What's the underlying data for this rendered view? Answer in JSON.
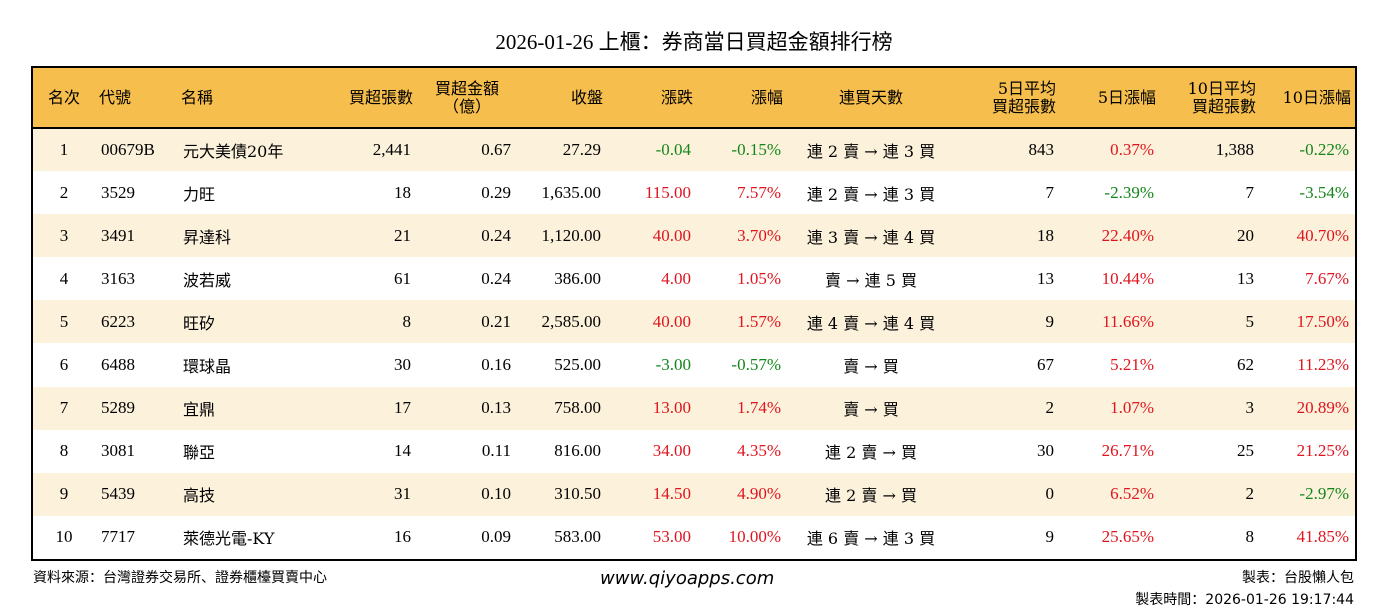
{
  "title": "2026-01-26 上櫃：券商當日買超金額排行榜",
  "colors": {
    "header_bg": "#f6be4c",
    "row_alt_bg": "#fcf1db",
    "up": "#e0141e",
    "down": "#13861a"
  },
  "headers": {
    "rank": "名次",
    "code": "代號",
    "name": "名稱",
    "net_buy_lots": "買超張數",
    "net_buy_amount_l1": "買超金額",
    "net_buy_amount_l2": "（億）",
    "close": "收盤",
    "change": "漲跌",
    "change_pct": "漲幅",
    "streak": "連買天數",
    "avg5_l1": "5日平均",
    "avg5_l2": "買超張數",
    "pct5": "5日漲幅",
    "avg10_l1": "10日平均",
    "avg10_l2": "買超張數",
    "pct10": "10日漲幅"
  },
  "rows": [
    {
      "rank": "1",
      "code": "00679B",
      "name": "元大美債20年",
      "lots": "2,441",
      "amount": "0.67",
      "close": "27.29",
      "change": "-0.04",
      "change_pct": "-0.15%",
      "streak": "連 2 賣 → 連 3 買",
      "avg5": "843",
      "pct5": "0.37%",
      "avg10": "1,388",
      "pct10": "-0.22%",
      "dir": [
        "down",
        "down",
        "up",
        "down"
      ]
    },
    {
      "rank": "2",
      "code": "3529",
      "name": "力旺",
      "lots": "18",
      "amount": "0.29",
      "close": "1,635.00",
      "change": "115.00",
      "change_pct": "7.57%",
      "streak": "連 2 賣 → 連 3 買",
      "avg5": "7",
      "pct5": "-2.39%",
      "avg10": "7",
      "pct10": "-3.54%",
      "dir": [
        "up",
        "up",
        "down",
        "down"
      ]
    },
    {
      "rank": "3",
      "code": "3491",
      "name": "昇達科",
      "lots": "21",
      "amount": "0.24",
      "close": "1,120.00",
      "change": "40.00",
      "change_pct": "3.70%",
      "streak": "連 3 賣 → 連 4 買",
      "avg5": "18",
      "pct5": "22.40%",
      "avg10": "20",
      "pct10": "40.70%",
      "dir": [
        "up",
        "up",
        "up",
        "up"
      ]
    },
    {
      "rank": "4",
      "code": "3163",
      "name": "波若威",
      "lots": "61",
      "amount": "0.24",
      "close": "386.00",
      "change": "4.00",
      "change_pct": "1.05%",
      "streak": "賣 → 連 5 買",
      "avg5": "13",
      "pct5": "10.44%",
      "avg10": "13",
      "pct10": "7.67%",
      "dir": [
        "up",
        "up",
        "up",
        "up"
      ]
    },
    {
      "rank": "5",
      "code": "6223",
      "name": "旺矽",
      "lots": "8",
      "amount": "0.21",
      "close": "2,585.00",
      "change": "40.00",
      "change_pct": "1.57%",
      "streak": "連 4 賣 → 連 4 買",
      "avg5": "9",
      "pct5": "11.66%",
      "avg10": "5",
      "pct10": "17.50%",
      "dir": [
        "up",
        "up",
        "up",
        "up"
      ]
    },
    {
      "rank": "6",
      "code": "6488",
      "name": "環球晶",
      "lots": "30",
      "amount": "0.16",
      "close": "525.00",
      "change": "-3.00",
      "change_pct": "-0.57%",
      "streak": "賣 → 買",
      "avg5": "67",
      "pct5": "5.21%",
      "avg10": "62",
      "pct10": "11.23%",
      "dir": [
        "down",
        "down",
        "up",
        "up"
      ]
    },
    {
      "rank": "7",
      "code": "5289",
      "name": "宜鼎",
      "lots": "17",
      "amount": "0.13",
      "close": "758.00",
      "change": "13.00",
      "change_pct": "1.74%",
      "streak": "賣 → 買",
      "avg5": "2",
      "pct5": "1.07%",
      "avg10": "3",
      "pct10": "20.89%",
      "dir": [
        "up",
        "up",
        "up",
        "up"
      ]
    },
    {
      "rank": "8",
      "code": "3081",
      "name": "聯亞",
      "lots": "14",
      "amount": "0.11",
      "close": "816.00",
      "change": "34.00",
      "change_pct": "4.35%",
      "streak": "連 2 賣 → 買",
      "avg5": "30",
      "pct5": "26.71%",
      "avg10": "25",
      "pct10": "21.25%",
      "dir": [
        "up",
        "up",
        "up",
        "up"
      ]
    },
    {
      "rank": "9",
      "code": "5439",
      "name": "高技",
      "lots": "31",
      "amount": "0.10",
      "close": "310.50",
      "change": "14.50",
      "change_pct": "4.90%",
      "streak": "連 2 賣 → 買",
      "avg5": "0",
      "pct5": "6.52%",
      "avg10": "2",
      "pct10": "-2.97%",
      "dir": [
        "up",
        "up",
        "up",
        "down"
      ]
    },
    {
      "rank": "10",
      "code": "7717",
      "name": "萊德光電-KY",
      "lots": "16",
      "amount": "0.09",
      "close": "583.00",
      "change": "53.00",
      "change_pct": "10.00%",
      "streak": "連 6 賣 → 連 3 買",
      "avg5": "9",
      "pct5": "25.65%",
      "avg10": "8",
      "pct10": "41.85%",
      "dir": [
        "up",
        "up",
        "up",
        "up"
      ]
    }
  ],
  "footer": {
    "source": "資料來源：台灣證券交易所、證券櫃檯買賣中心",
    "website": "www.qiyoapps.com",
    "maker": "製表：台股懶人包",
    "made_time": "製表時間：2026-01-26 19:17:44"
  }
}
